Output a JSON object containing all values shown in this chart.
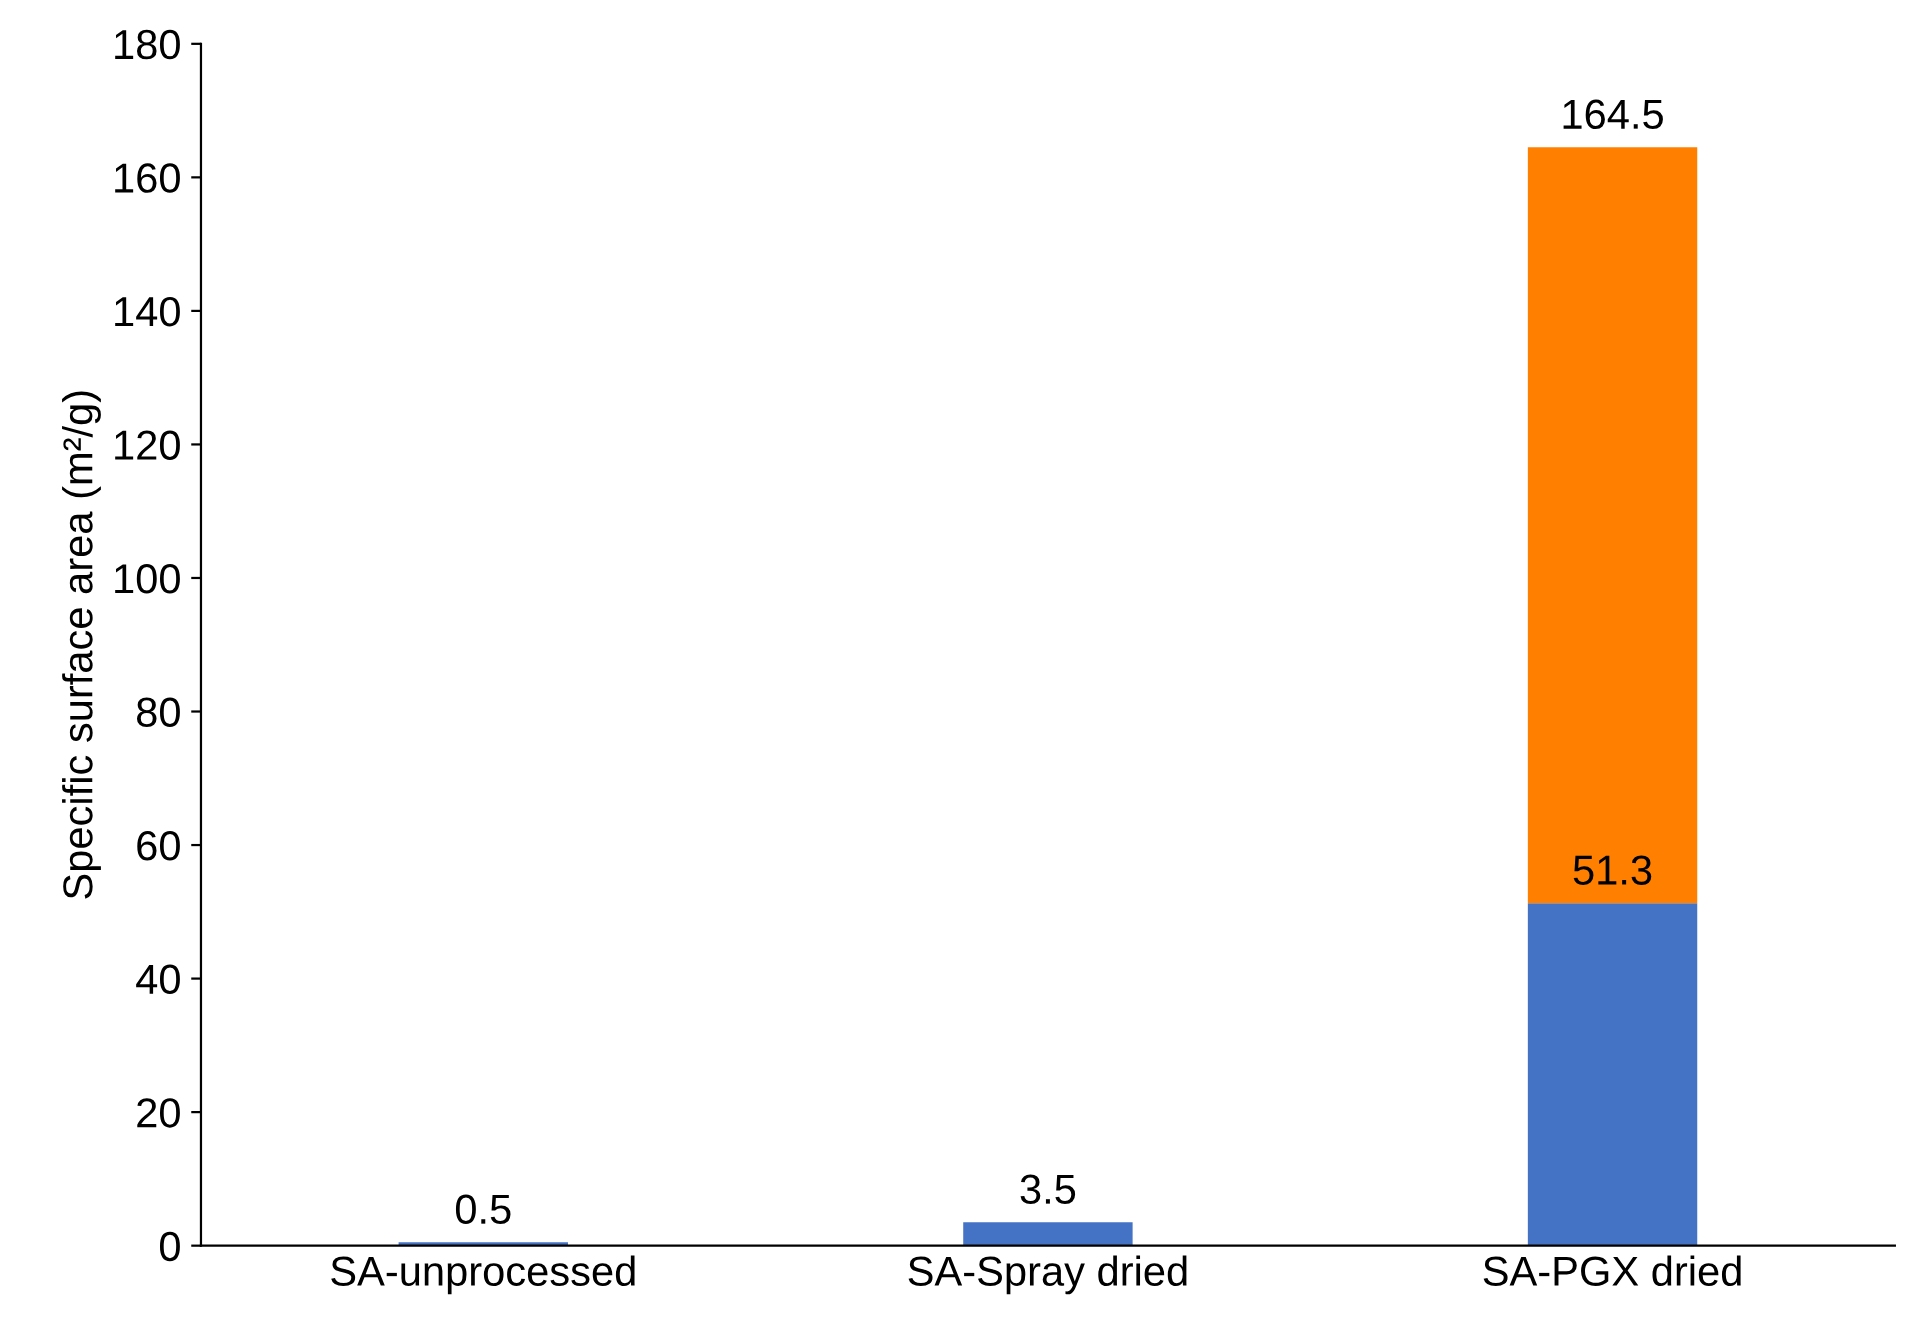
{
  "chart_data": {
    "type": "bar",
    "stacked": true,
    "ylabel": "Specific surface area (m²/g)",
    "categories": [
      "SA-unprocessed",
      "SA-Spray dried",
      "SA-PGX dried"
    ],
    "series": [
      {
        "color": "#4472c4",
        "values": [
          0.5,
          3.5,
          51.3
        ],
        "value_labels": [
          "0.5",
          "3.5",
          "51.3"
        ]
      },
      {
        "color": "#ff7f00",
        "values": [
          null,
          null,
          113.2
        ]
      }
    ],
    "totals": [
      null,
      null,
      "164.5"
    ],
    "ylim": [
      0,
      180
    ],
    "yticks": [
      0,
      20,
      40,
      60,
      80,
      100,
      120,
      140,
      160,
      180
    ],
    "grid": false,
    "legend": false
  }
}
